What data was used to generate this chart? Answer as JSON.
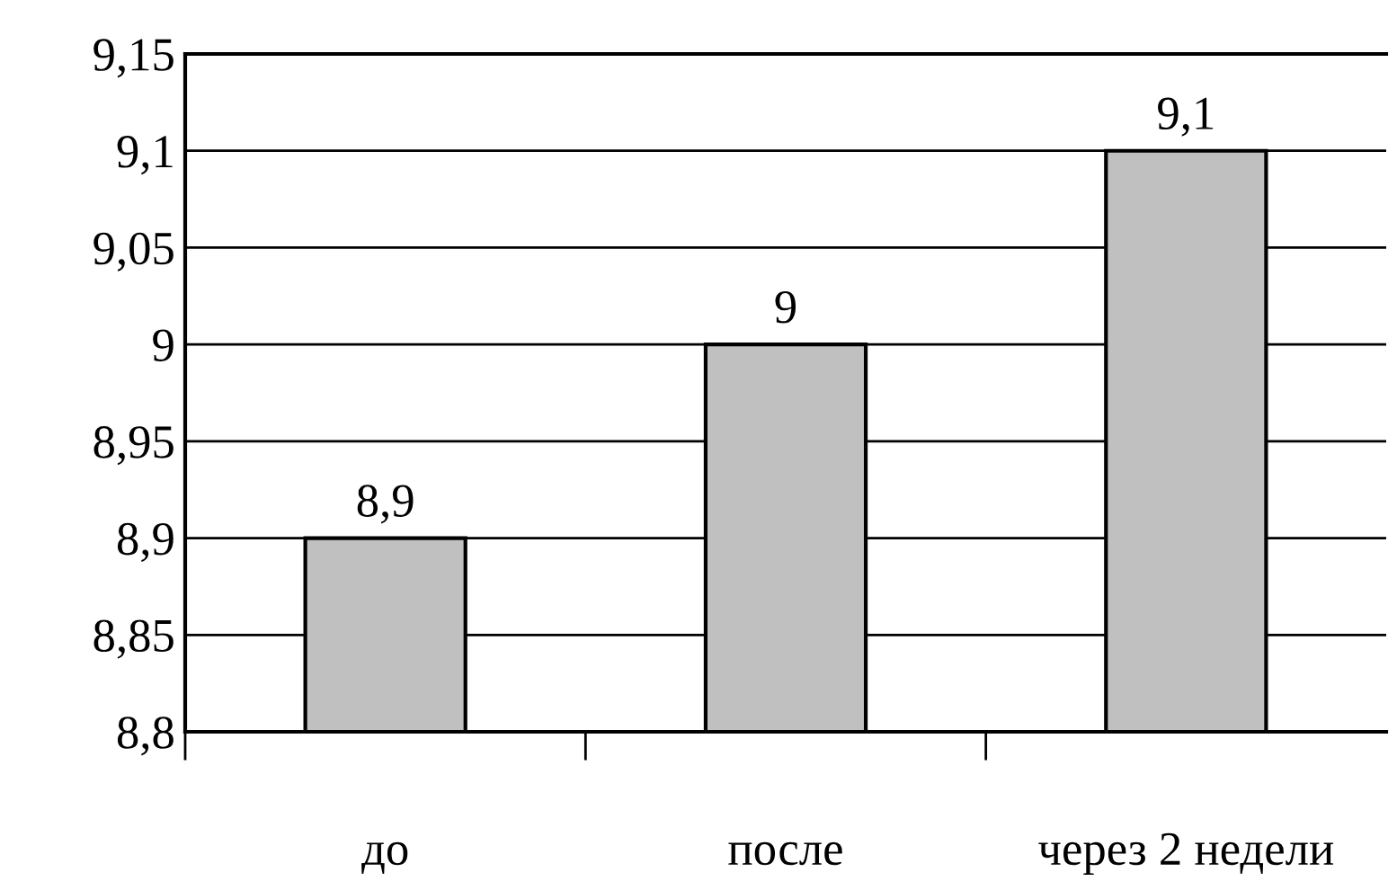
{
  "chart_data": {
    "type": "bar",
    "categories": [
      "до",
      "после",
      "через 2 недели"
    ],
    "values": [
      8.9,
      9,
      9.1
    ],
    "value_labels": [
      "8,9",
      "9",
      "9,1"
    ],
    "color": "#c0c0c0",
    "ylim": [
      8.8,
      9.15
    ],
    "yticks": [
      {
        "value": 8.8,
        "label": "8,8"
      },
      {
        "value": 8.85,
        "label": "8,85"
      },
      {
        "value": 8.9,
        "label": "8,9"
      },
      {
        "value": 8.95,
        "label": "8,95"
      },
      {
        "value": 9,
        "label": "9"
      },
      {
        "value": 9.05,
        "label": "9,05"
      },
      {
        "value": 9.1,
        "label": "9,1"
      },
      {
        "value": 9.15,
        "label": "9,15"
      }
    ],
    "grid": "y",
    "legend": false
  }
}
